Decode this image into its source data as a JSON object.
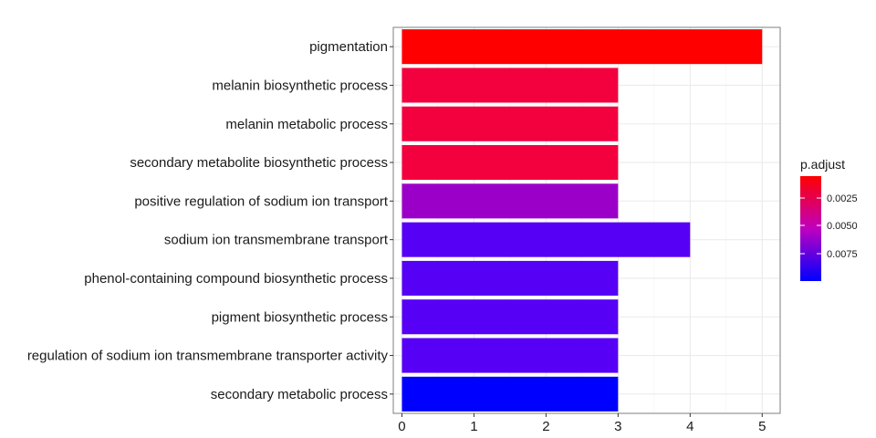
{
  "chart_data": {
    "type": "bar",
    "orientation": "horizontal",
    "categories": [
      "pigmentation",
      "melanin biosynthetic process",
      "melanin metabolic process",
      "secondary metabolite biosynthetic process",
      "positive regulation of sodium ion transport",
      "sodium ion transmembrane transport",
      "phenol-containing compound biosynthetic process",
      "pigment biosynthetic process",
      "regulation of sodium ion transmembrane transporter activity",
      "secondary metabolic process"
    ],
    "values": [
      5,
      3,
      3,
      3,
      3,
      4,
      3,
      3,
      3,
      3
    ],
    "colors": [
      "#FF0000",
      "#F3003E",
      "#F3003E",
      "#F3003E",
      "#9B00C8",
      "#5600F5",
      "#5600F5",
      "#5600F5",
      "#5600F5",
      "#0000FF"
    ],
    "xlim": [
      -0.12,
      5.25
    ],
    "xticks": [
      "0",
      "1",
      "2",
      "3",
      "4",
      "5"
    ],
    "grid": true,
    "legend": {
      "title": "p.adjust",
      "position": "right",
      "ticks": [
        "0.0025",
        "0.0050",
        "0.0075"
      ],
      "color_high": "#FF0000",
      "color_mid": "#BF00BF",
      "color_low": "#0000FF"
    }
  }
}
